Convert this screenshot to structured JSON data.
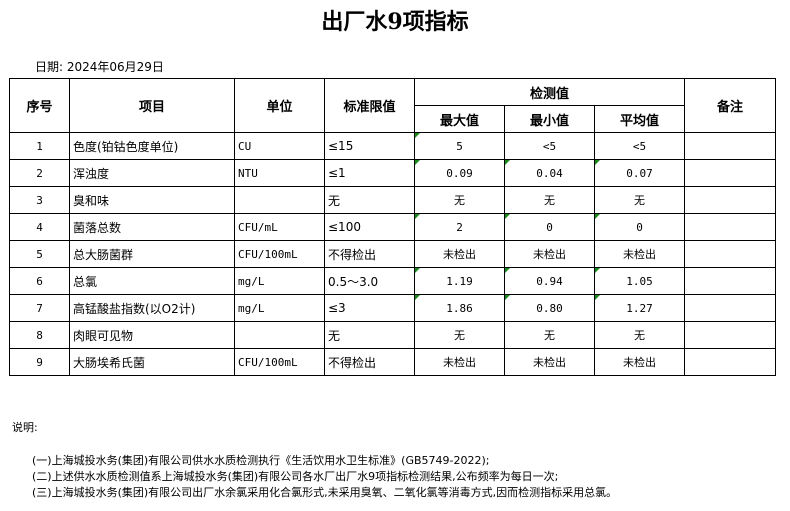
{
  "title": "出厂水9项指标",
  "date": "日期: 2024年06月29日",
  "headers": {
    "seq": "序号",
    "item": "项目",
    "unit": "单位",
    "limit": "标准限值",
    "measured": "检测值",
    "max": "最大值",
    "min": "最小值",
    "avg": "平均值",
    "remark": "备注"
  },
  "rows": [
    {
      "seq": "1",
      "item": "色度(铂钴色度单位)",
      "unit": "CU",
      "limit": "≤15",
      "max": "5",
      "min": "<5",
      "avg": "<5",
      "remark": "",
      "flags": [
        1,
        0,
        0
      ]
    },
    {
      "seq": "2",
      "item": "浑浊度",
      "unit": "NTU",
      "limit": "≤1",
      "max": "0.09",
      "min": "0.04",
      "avg": "0.07",
      "remark": "",
      "flags": [
        1,
        1,
        1
      ]
    },
    {
      "seq": "3",
      "item": "臭和味",
      "unit": "",
      "limit": "无",
      "max": "无",
      "min": "无",
      "avg": "无",
      "remark": "",
      "flags": [
        0,
        0,
        0
      ]
    },
    {
      "seq": "4",
      "item": "菌落总数",
      "unit": "CFU/mL",
      "limit": "≤100",
      "max": "2",
      "min": "0",
      "avg": "0",
      "remark": "",
      "flags": [
        1,
        1,
        1
      ]
    },
    {
      "seq": "5",
      "item": "总大肠菌群",
      "unit": "CFU/100mL",
      "limit": "不得检出",
      "max": "未检出",
      "min": "未检出",
      "avg": "未检出",
      "remark": "",
      "flags": [
        0,
        0,
        0
      ]
    },
    {
      "seq": "6",
      "item": "总氯",
      "unit": "mg/L",
      "limit": "0.5～3.0",
      "max": "1.19",
      "min": "0.94",
      "avg": "1.05",
      "remark": "",
      "flags": [
        1,
        1,
        1
      ]
    },
    {
      "seq": "7",
      "item": "高锰酸盐指数(以O2计)",
      "unit": "mg/L",
      "limit": "≤3",
      "max": "1.86",
      "min": "0.80",
      "avg": "1.27",
      "remark": "",
      "flags": [
        1,
        1,
        1
      ]
    },
    {
      "seq": "8",
      "item": "肉眼可见物",
      "unit": "",
      "limit": "无",
      "max": "无",
      "min": "无",
      "avg": "无",
      "remark": "",
      "flags": [
        0,
        0,
        0
      ]
    },
    {
      "seq": "9",
      "item": "大肠埃希氏菌",
      "unit": "CFU/100mL",
      "limit": "不得检出",
      "max": "未检出",
      "min": "未检出",
      "avg": "未检出",
      "remark": "",
      "flags": [
        0,
        0,
        0
      ]
    }
  ],
  "notes": {
    "title": "说明:",
    "items": [
      "(一)上海城投水务(集团)有限公司供水水质检测执行《生活饮用水卫生标准》(GB5749-2022);",
      "(二)上述供水水质检测值系上海城投水务(集团)有限公司各水厂出厂水9项指标检测结果,公布频率为每日一次;",
      "(三)上海城投水务(集团)有限公司出厂水余氯采用化合氯形式,未采用臭氧、二氧化氯等消毒方式,因而检测指标采用总氯。"
    ]
  },
  "colors": {
    "indicator": "#1a8a1a"
  }
}
